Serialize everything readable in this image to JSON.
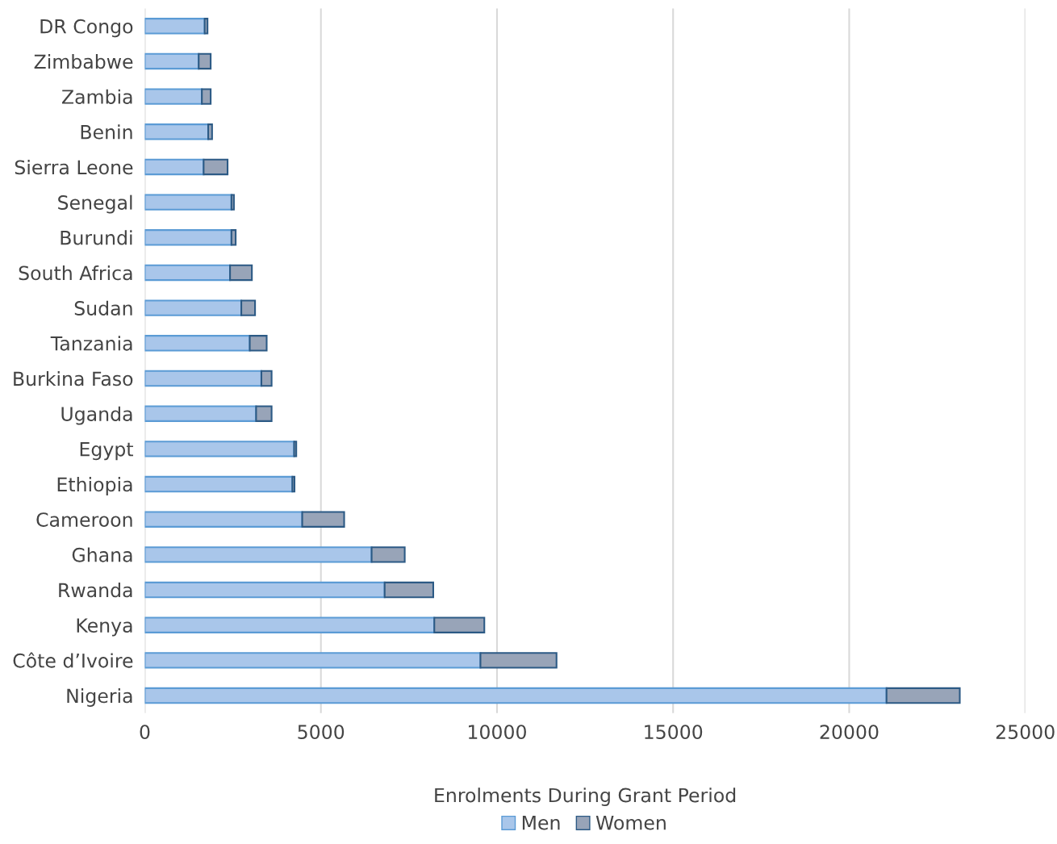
{
  "chart_data": {
    "type": "bar",
    "orientation": "horizontal",
    "stacked": true,
    "xlabel": "Enrolments During Grant Period",
    "categories": [
      "DR Congo",
      "Zimbabwe",
      "Zambia",
      "Benin",
      "Sierra Leone",
      "Senegal",
      "Burundi",
      "South Africa",
      "Sudan",
      "Tanzania",
      "Burkina Faso",
      "Uganda",
      "Egypt",
      "Ethiopia",
      "Cameroon",
      "Ghana",
      "Rwanda",
      "Kenya",
      "Côte d’Ivoire",
      "Nigeria"
    ],
    "series": [
      {
        "name": "Men",
        "color": "#a9c6ea",
        "values": [
          1700,
          1530,
          1620,
          1800,
          1670,
          2460,
          2460,
          2420,
          2740,
          2980,
          3310,
          3160,
          4240,
          4190,
          4470,
          6440,
          6810,
          8220,
          9530,
          21060
        ]
      },
      {
        "name": "Women",
        "color": "#98a4b8",
        "values": [
          80,
          340,
          250,
          110,
          680,
          70,
          120,
          620,
          390,
          480,
          290,
          440,
          60,
          60,
          1190,
          940,
          1380,
          1420,
          2160,
          2080
        ]
      }
    ],
    "xlim": [
      0,
      25000
    ],
    "xticks": [
      0,
      5000,
      10000,
      15000,
      20000,
      25000
    ],
    "grid": "x",
    "legend": "bottom"
  }
}
